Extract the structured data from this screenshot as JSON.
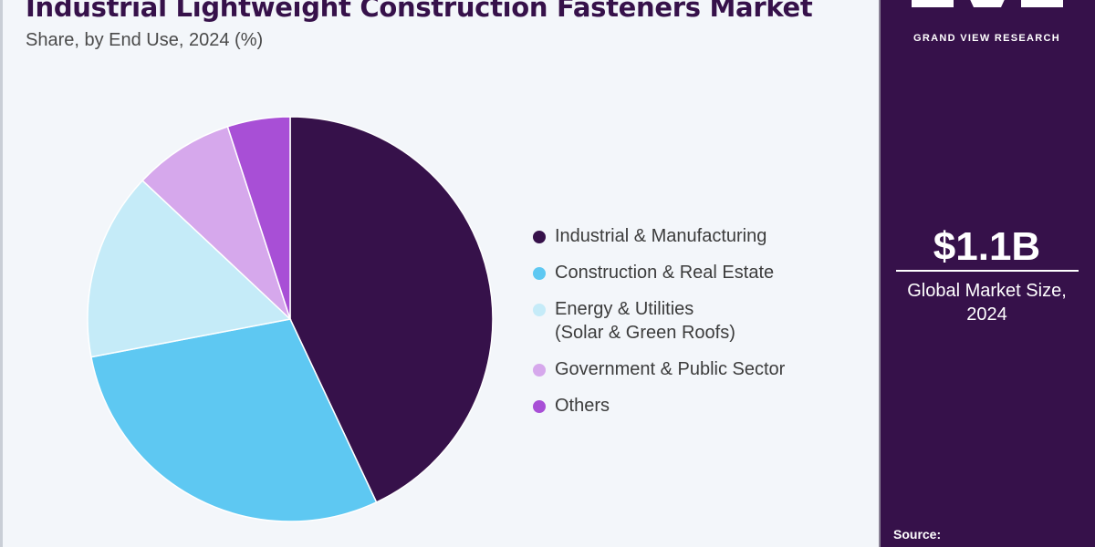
{
  "header": {
    "title": "Industrial Lightweight Construction Fasteners Market",
    "subtitle": "Share, by End Use, 2024 (%)"
  },
  "chart_data": {
    "type": "pie",
    "title": "Industrial Lightweight Construction Fasteners Market",
    "subtitle": "Share, by End Use, 2024 (%)",
    "legend_position": "right",
    "categories": [
      "Industrial & Manufacturing",
      "Construction & Real Estate",
      "Energy & Utilities\n(Solar & Green Roofs)",
      "Government & Public Sector",
      "Others"
    ],
    "values": [
      43,
      29,
      15,
      8,
      5
    ],
    "colors": [
      "#36114a",
      "#5ec8f2",
      "#c5ebf8",
      "#d6a8ec",
      "#a84fd6"
    ]
  },
  "side_panel": {
    "brand": "GRAND VIEW RESEARCH",
    "logo_icon": "gvr-logo-icon",
    "market_value": "$1.1B",
    "market_label": "Global Market Size,\n2024",
    "source_label": "Source:"
  }
}
